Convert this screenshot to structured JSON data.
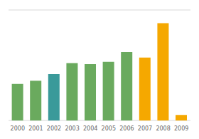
{
  "chart_data": {
    "type": "bar",
    "categories": [
      "2000",
      "2001",
      "2002",
      "2003",
      "2004",
      "2005",
      "2006",
      "2007",
      "2008",
      "2009"
    ],
    "values": [
      33,
      36,
      42,
      52,
      51,
      53,
      62,
      57,
      88,
      5
    ],
    "colors": [
      "#6aaa5e",
      "#6aaa5e",
      "#3a9a9a",
      "#6aaa5e",
      "#6aaa5e",
      "#6aaa5e",
      "#6aaa5e",
      "#f5a800",
      "#f5a800",
      "#f5a800"
    ],
    "ylim": [
      0,
      100
    ],
    "yticks": [
      0,
      25,
      50,
      75,
      100
    ],
    "grid": true,
    "tick_labels": "x"
  }
}
